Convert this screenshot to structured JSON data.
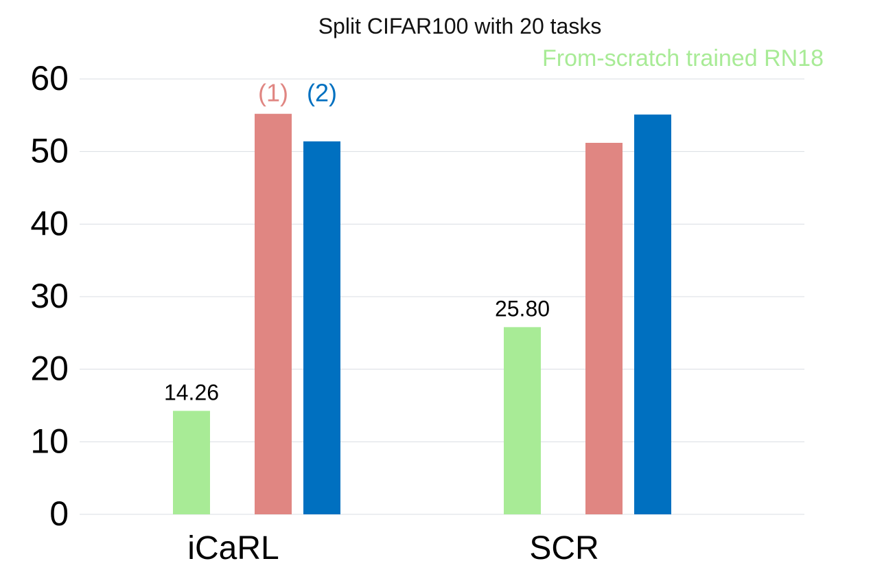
{
  "chart_data": {
    "type": "bar",
    "title": "Split CIFAR100 with 20 tasks",
    "xlabel": "",
    "ylabel": "",
    "categories": [
      "iCaRL",
      "SCR"
    ],
    "ylim": [
      0,
      60
    ],
    "yticks": [
      0,
      10,
      20,
      30,
      40,
      50,
      60
    ],
    "grid": true,
    "series": [
      {
        "name": "From-scratch trained RN18",
        "color": "#a8eb96",
        "values": [
          14.26,
          25.8
        ],
        "labels": [
          "14.26",
          "25.80"
        ]
      },
      {
        "name": "(1)",
        "color": "#e08682",
        "values": [
          55.2,
          51.2
        ]
      },
      {
        "name": "(2)",
        "color": "#0070c0",
        "values": [
          51.4,
          55.1
        ]
      }
    ]
  }
}
